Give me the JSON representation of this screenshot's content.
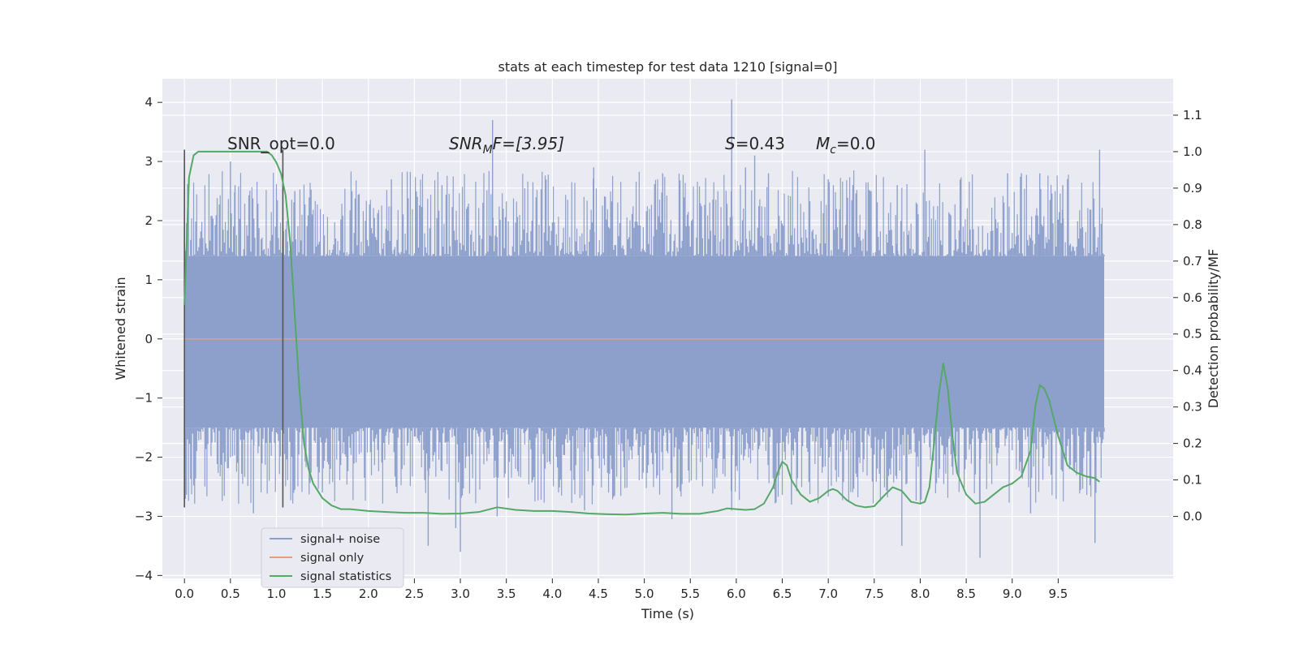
{
  "chart_data": {
    "type": "line",
    "title": "stats at each timestep for test data 1210 [signal=0]",
    "xlabel": "Time (s)",
    "ylabel_left": "Whitened strain",
    "ylabel_right": "Detection probability/MF",
    "xlim": [
      -0.24,
      10.75
    ],
    "ylim_left": [
      -4.05,
      4.4
    ],
    "ylim_right": [
      -0.17,
      1.2
    ],
    "x_ticks": [
      0.0,
      0.5,
      1.0,
      1.5,
      2.0,
      2.5,
      3.0,
      3.5,
      4.0,
      4.5,
      5.0,
      5.5,
      6.0,
      6.5,
      7.0,
      7.5,
      8.0,
      8.5,
      9.0,
      9.5
    ],
    "x_tick_labels": [
      "0.0",
      "0.5",
      "1.0",
      "1.5",
      "2.0",
      "2.5",
      "3.0",
      "3.5",
      "4.0",
      "4.5",
      "5.0",
      "5.5",
      "6.0",
      "6.5",
      "7.0",
      "7.5",
      "8.0",
      "8.5",
      "9.0",
      "9.5"
    ],
    "y_left_ticks": [
      4,
      3,
      2,
      1,
      0,
      -1,
      -2,
      -3,
      -4
    ],
    "y_left_tick_labels": [
      "4",
      "3",
      "2",
      "1",
      "0",
      "−1",
      "−2",
      "−3",
      "−4"
    ],
    "y_right_ticks": [
      1.1,
      1.0,
      0.9,
      0.8,
      0.7,
      0.6,
      0.5,
      0.4,
      0.3,
      0.2,
      0.1,
      0.0
    ],
    "y_right_tick_labels": [
      "1.1",
      "1.0",
      "0.9",
      "0.8",
      "0.7",
      "0.6",
      "0.5",
      "0.4",
      "0.3",
      "0.2",
      "0.1",
      "0.0"
    ],
    "grid": true,
    "legend_position": "lower-left",
    "colors": {
      "signal_noise": "#8da0cb",
      "signal_only": "#e99c78",
      "signal_statistics": "#55a868",
      "background": "#eaeaf2",
      "grid": "#ffffff",
      "vline": "#555555"
    },
    "series": [
      {
        "name": "signal+ noise",
        "axis": "left",
        "kind": "noise",
        "x_range": [
          0.0,
          10.0
        ],
        "core_band": [
          -1.5,
          1.4
        ],
        "upper_spikes": [
          [
            0.5,
            3.0
          ],
          [
            0.55,
            2.6
          ],
          [
            1.2,
            2.5
          ],
          [
            2.25,
            2.7
          ],
          [
            2.8,
            2.6
          ],
          [
            3.35,
            3.7
          ],
          [
            4.45,
            2.9
          ],
          [
            5.2,
            2.8
          ],
          [
            5.95,
            4.05
          ],
          [
            6.1,
            2.9
          ],
          [
            6.2,
            3.1
          ],
          [
            6.35,
            2.8
          ],
          [
            7.0,
            2.7
          ],
          [
            7.75,
            2.6
          ],
          [
            8.05,
            3.2
          ],
          [
            8.95,
            2.8
          ],
          [
            9.1,
            2.8
          ],
          [
            9.3,
            2.8
          ],
          [
            9.55,
            2.6
          ],
          [
            9.95,
            3.2
          ]
        ],
        "lower_spikes": [
          [
            0.75,
            -2.95
          ],
          [
            1.5,
            -2.6
          ],
          [
            2.65,
            -3.5
          ],
          [
            2.95,
            -3.2
          ],
          [
            3.0,
            -3.6
          ],
          [
            3.4,
            -3.0
          ],
          [
            4.35,
            -2.9
          ],
          [
            5.3,
            -3.05
          ],
          [
            5.95,
            -2.9
          ],
          [
            6.6,
            -2.8
          ],
          [
            7.8,
            -3.5
          ],
          [
            8.65,
            -3.7
          ],
          [
            9.2,
            -2.95
          ],
          [
            9.9,
            -3.45
          ]
        ]
      },
      {
        "name": "signal only",
        "axis": "left",
        "x": [
          0.0,
          10.0
        ],
        "y": [
          0.0,
          0.0
        ]
      },
      {
        "name": "signal statistics",
        "axis": "right",
        "x": [
          0.0,
          0.05,
          0.1,
          0.15,
          0.2,
          0.3,
          0.4,
          0.5,
          0.6,
          0.7,
          0.8,
          0.9,
          0.95,
          1.0,
          1.05,
          1.1,
          1.15,
          1.2,
          1.25,
          1.3,
          1.35,
          1.4,
          1.45,
          1.5,
          1.6,
          1.7,
          1.8,
          2.0,
          2.2,
          2.4,
          2.6,
          2.8,
          3.0,
          3.2,
          3.4,
          3.6,
          3.8,
          4.0,
          4.2,
          4.4,
          4.6,
          4.8,
          5.0,
          5.2,
          5.4,
          5.6,
          5.8,
          5.9,
          6.0,
          6.1,
          6.2,
          6.3,
          6.4,
          6.45,
          6.5,
          6.55,
          6.6,
          6.7,
          6.8,
          6.9,
          7.0,
          7.05,
          7.1,
          7.2,
          7.3,
          7.4,
          7.5,
          7.6,
          7.7,
          7.8,
          7.9,
          8.0,
          8.05,
          8.1,
          8.15,
          8.2,
          8.25,
          8.3,
          8.35,
          8.4,
          8.5,
          8.6,
          8.7,
          8.8,
          8.9,
          9.0,
          9.1,
          9.2,
          9.25,
          9.3,
          9.35,
          9.4,
          9.5,
          9.6,
          9.7,
          9.8,
          9.9,
          9.95
        ],
        "y": [
          0.58,
          0.93,
          0.99,
          1.0,
          1.0,
          1.0,
          1.0,
          1.0,
          1.0,
          1.0,
          1.0,
          1.0,
          0.99,
          0.97,
          0.94,
          0.88,
          0.75,
          0.55,
          0.35,
          0.2,
          0.13,
          0.09,
          0.07,
          0.05,
          0.03,
          0.02,
          0.02,
          0.015,
          0.012,
          0.01,
          0.01,
          0.007,
          0.008,
          0.012,
          0.025,
          0.018,
          0.015,
          0.015,
          0.012,
          0.008,
          0.006,
          0.005,
          0.008,
          0.01,
          0.007,
          0.007,
          0.015,
          0.022,
          0.02,
          0.018,
          0.02,
          0.035,
          0.08,
          0.12,
          0.15,
          0.14,
          0.1,
          0.06,
          0.04,
          0.05,
          0.07,
          0.075,
          0.07,
          0.045,
          0.03,
          0.025,
          0.028,
          0.055,
          0.08,
          0.07,
          0.04,
          0.035,
          0.04,
          0.08,
          0.2,
          0.33,
          0.42,
          0.35,
          0.22,
          0.12,
          0.06,
          0.035,
          0.04,
          0.06,
          0.08,
          0.09,
          0.11,
          0.18,
          0.3,
          0.36,
          0.35,
          0.32,
          0.22,
          0.14,
          0.12,
          0.11,
          0.105,
          0.095
        ]
      }
    ],
    "vlines": [
      {
        "x": 0.0,
        "y0": -2.85,
        "y1": 3.2
      },
      {
        "x": 1.07,
        "y0": -2.85,
        "y1": 3.2
      }
    ],
    "annotations": {
      "snr_opt": "SNR_opt=0.0",
      "snr_mf_prefix": "SNR",
      "snr_mf_sub": "M",
      "snr_mf_suffix": "F=[3.95]",
      "s_var": "S",
      "s_value": "=0.43",
      "mc_var": "M",
      "mc_sub": "c",
      "mc_value": "=0.0"
    }
  }
}
